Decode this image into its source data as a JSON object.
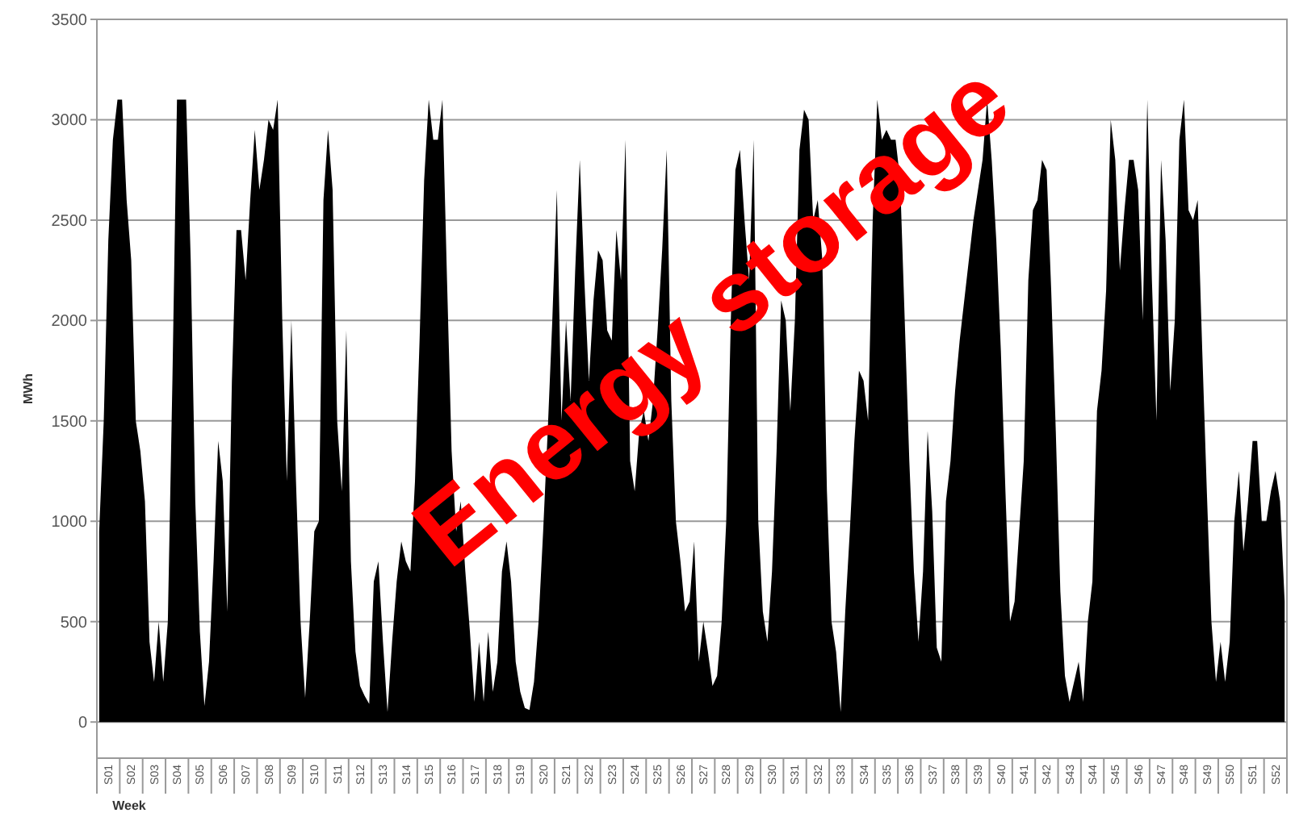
{
  "chart_data": {
    "type": "area",
    "xlabel": "Week",
    "ylabel": "MWh",
    "annotations": [
      "Energy storage"
    ],
    "ylim": [
      -180,
      3500
    ],
    "yticks": [
      0,
      500,
      1000,
      1500,
      2000,
      2500,
      3000,
      3500
    ],
    "grid": "y",
    "categories": [
      null,
      null,
      "S01",
      null,
      null,
      null,
      null,
      "S02",
      null,
      null,
      null,
      null,
      "S03",
      null,
      null,
      null,
      null,
      "S04",
      null,
      null,
      null,
      null,
      "S05",
      null,
      null,
      null,
      null,
      "S06",
      null,
      null,
      null,
      null,
      "S07",
      null,
      null,
      null,
      null,
      "S08",
      null,
      null,
      null,
      null,
      "S09",
      null,
      null,
      null,
      null,
      "S10",
      null,
      null,
      null,
      null,
      "S11",
      null,
      null,
      null,
      null,
      "S12",
      null,
      null,
      null,
      null,
      "S13",
      null,
      null,
      null,
      null,
      "S14",
      null,
      null,
      null,
      null,
      "S15",
      null,
      null,
      null,
      null,
      "S16",
      null,
      null,
      null,
      null,
      "S17",
      null,
      null,
      null,
      null,
      "S18",
      null,
      null,
      null,
      null,
      "S19",
      null,
      null,
      null,
      null,
      "S20",
      null,
      null,
      null,
      null,
      "S21",
      null,
      null,
      null,
      null,
      "S22",
      null,
      null,
      null,
      null,
      "S23",
      null,
      null,
      null,
      null,
      "S24",
      null,
      null,
      null,
      null,
      "S25",
      null,
      null,
      null,
      null,
      "S26",
      null,
      null,
      null,
      null,
      "S27",
      null,
      null,
      null,
      null,
      "S28",
      null,
      null,
      null,
      null,
      "S29",
      null,
      null,
      null,
      null,
      "S30",
      null,
      null,
      null,
      null,
      "S31",
      null,
      null,
      null,
      null,
      "S32",
      null,
      null,
      null,
      null,
      "S33",
      null,
      null,
      null,
      null,
      "S34",
      null,
      null,
      null,
      null,
      "S35",
      null,
      null,
      null,
      null,
      "S36",
      null,
      null,
      null,
      null,
      "S37",
      null,
      null,
      null,
      null,
      "S38",
      null,
      null,
      null,
      null,
      "S39",
      null,
      null,
      null,
      null,
      "S40",
      null,
      null,
      null,
      null,
      "S41",
      null,
      null,
      null,
      null,
      "S42",
      null,
      null,
      null,
      null,
      "S43",
      null,
      null,
      null,
      null,
      "S44",
      null,
      null,
      null,
      null,
      "S45",
      null,
      null,
      null,
      null,
      "S46",
      null,
      null,
      null,
      null,
      "S47",
      null,
      null,
      null,
      null,
      "S48",
      null,
      null,
      null,
      null,
      "S49",
      null,
      null,
      null,
      null,
      "S50",
      null,
      null,
      null,
      null,
      "S51",
      null,
      null,
      null,
      null,
      "S52",
      null,
      null
    ],
    "series": [
      {
        "color": "#000000",
        "values": [
          950,
          1500,
          2400,
          2900,
          3100,
          3100,
          2600,
          2300,
          1500,
          1350,
          1100,
          400,
          200,
          500,
          200,
          500,
          1700,
          3100,
          3100,
          3100,
          2300,
          1100,
          450,
          80,
          300,
          800,
          1400,
          1200,
          550,
          1700,
          2450,
          2450,
          2200,
          2600,
          2950,
          2650,
          2800,
          3000,
          2950,
          3100,
          2000,
          1200,
          2000,
          1200,
          500,
          120,
          500,
          950,
          1000,
          2600,
          2950,
          2650,
          1500,
          1150,
          1950,
          800,
          350,
          180,
          130,
          90,
          700,
          800,
          400,
          50,
          400,
          700,
          900,
          800,
          750,
          1200,
          1900,
          2700,
          3100,
          2900,
          2900,
          3100,
          2200,
          1350,
          950,
          1100,
          750,
          450,
          100,
          400,
          100,
          450,
          150,
          300,
          750,
          900,
          700,
          300,
          150,
          70,
          60,
          200,
          500,
          950,
          1450,
          2000,
          2650,
          1500,
          2000,
          1600,
          2250,
          2800,
          2200,
          1700,
          2100,
          2350,
          2300,
          1950,
          1900,
          2450,
          2200,
          2900,
          1300,
          1150,
          1450,
          1550,
          1400,
          1600,
          1950,
          2350,
          2850,
          1600,
          1000,
          800,
          550,
          600,
          900,
          300,
          500,
          350,
          180,
          230,
          500,
          1000,
          2000,
          2750,
          2850,
          2500,
          2200,
          2900,
          1000,
          550,
          400,
          750,
          1350,
          2100,
          2000,
          1550,
          2000,
          2850,
          3050,
          3000,
          2500,
          2600,
          2300,
          1150,
          500,
          350,
          50,
          550,
          950,
          1400,
          1750,
          1700,
          1500,
          2500,
          3100,
          2900,
          2950,
          2900,
          2900,
          2700,
          2000,
          1300,
          750,
          400,
          750,
          1450,
          1050,
          370,
          300,
          1100,
          1300,
          1650,
          1900,
          2100,
          2300,
          2500,
          2650,
          2800,
          3100,
          2800,
          2400,
          1850,
          1150,
          500,
          600,
          950,
          1300,
          2200,
          2550,
          2600,
          2800,
          2750,
          2150,
          1450,
          650,
          230,
          100,
          200,
          300,
          100,
          500,
          700,
          1550,
          1750,
          2150,
          3000,
          2800,
          2250,
          2550,
          2800,
          2800,
          2650,
          2000,
          3100,
          2200,
          1500,
          2800,
          2400,
          1650,
          2000,
          2900,
          3100,
          2550,
          2500,
          2600,
          1850,
          1150,
          500,
          200,
          400,
          200,
          400,
          1000,
          1250,
          850,
          1100,
          1400,
          1400,
          1000,
          1000,
          1150,
          1250,
          1100,
          600
        ]
      }
    ]
  }
}
